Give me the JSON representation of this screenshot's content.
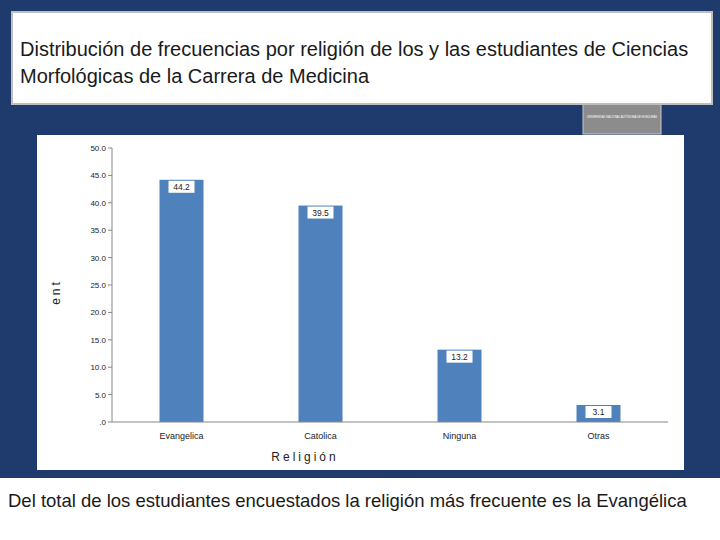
{
  "slide": {
    "title": "Distribución de frecuencias por religión de los y las estudiantes de Ciencias Morfológicas de la Carrera de Medicina",
    "logo": "UNIVERSIDAD NACIONAL AUTÓNOMA DE HONDURAS",
    "caption": "Del total de los estudiantes encuestados la religión más frecuente es la Evangélica"
  },
  "chart_data": {
    "type": "bar",
    "x_label": "Religión",
    "y_label": "ent",
    "categories": [
      "Evangelica",
      "Catolica",
      "Ninguna",
      "Otras"
    ],
    "values": [
      44.2,
      39.5,
      13.2,
      3.1
    ],
    "color": "#4f81bd",
    "ylim": [
      0,
      50
    ],
    "yticks": [
      {
        "value": 0,
        "label": ".0"
      },
      {
        "value": 5,
        "label": "5.0"
      },
      {
        "value": 10,
        "label": "10.0"
      },
      {
        "value": 15,
        "label": "15.0"
      },
      {
        "value": 20,
        "label": "20.0"
      },
      {
        "value": 25,
        "label": "25.0"
      },
      {
        "value": 30,
        "label": "30.0"
      },
      {
        "value": 35,
        "label": "35.0"
      },
      {
        "value": 40,
        "label": "40.0"
      },
      {
        "value": 45,
        "label": "45.0"
      },
      {
        "value": 50,
        "label": "50.0"
      }
    ],
    "grid": false,
    "data_labels": true
  }
}
